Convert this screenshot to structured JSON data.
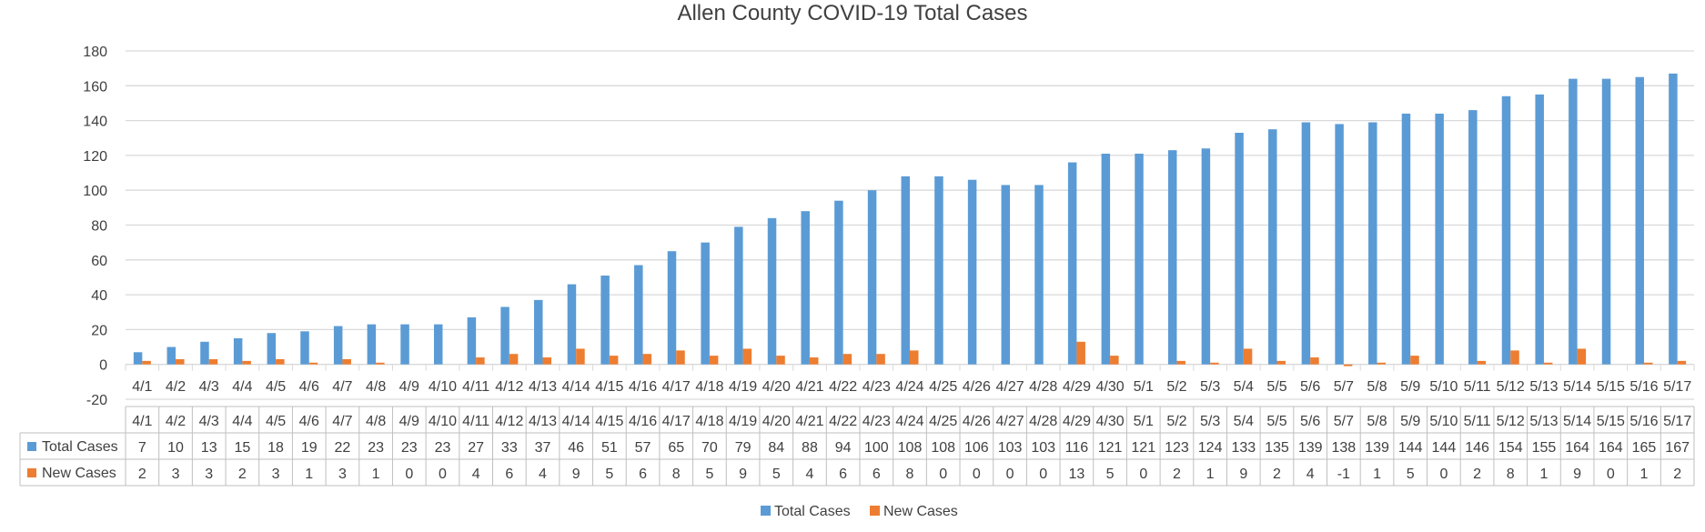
{
  "chart_data": {
    "type": "bar",
    "title": "Allen County COVID-19 Total Cases",
    "xlabel": "",
    "ylabel": "",
    "ylim": [
      -20,
      180
    ],
    "yticks": [
      -20,
      0,
      20,
      40,
      60,
      80,
      100,
      120,
      140,
      160,
      180
    ],
    "grid": true,
    "legend_position": "bottom",
    "data_table": true,
    "categories": [
      "4/1",
      "4/2",
      "4/3",
      "4/4",
      "4/5",
      "4/6",
      "4/7",
      "4/8",
      "4/9",
      "4/10",
      "4/11",
      "4/12",
      "4/13",
      "4/14",
      "4/15",
      "4/16",
      "4/17",
      "4/18",
      "4/19",
      "4/20",
      "4/21",
      "4/22",
      "4/23",
      "4/24",
      "4/25",
      "4/26",
      "4/27",
      "4/28",
      "4/29",
      "4/30",
      "5/1",
      "5/2",
      "5/3",
      "5/4",
      "5/5",
      "5/6",
      "5/7",
      "5/8",
      "5/9",
      "5/10",
      "5/11",
      "5/12",
      "5/13",
      "5/14",
      "5/15",
      "5/16",
      "5/17"
    ],
    "series": [
      {
        "name": "Total Cases",
        "color": "#5B9BD5",
        "values": [
          7,
          10,
          13,
          15,
          18,
          19,
          22,
          23,
          23,
          23,
          27,
          33,
          37,
          46,
          51,
          57,
          65,
          70,
          79,
          84,
          88,
          94,
          100,
          108,
          108,
          106,
          103,
          103,
          116,
          121,
          121,
          123,
          124,
          133,
          135,
          139,
          138,
          139,
          144,
          144,
          146,
          154,
          155,
          164,
          164,
          165,
          167
        ]
      },
      {
        "name": "New Cases",
        "color": "#ED7D31",
        "values": [
          2,
          3,
          3,
          2,
          3,
          1,
          3,
          1,
          0,
          0,
          4,
          6,
          4,
          9,
          5,
          6,
          8,
          5,
          9,
          5,
          4,
          6,
          6,
          8,
          0,
          0,
          0,
          0,
          13,
          5,
          0,
          2,
          1,
          9,
          2,
          4,
          -1,
          1,
          5,
          0,
          2,
          8,
          1,
          9,
          0,
          1,
          2
        ]
      }
    ]
  }
}
